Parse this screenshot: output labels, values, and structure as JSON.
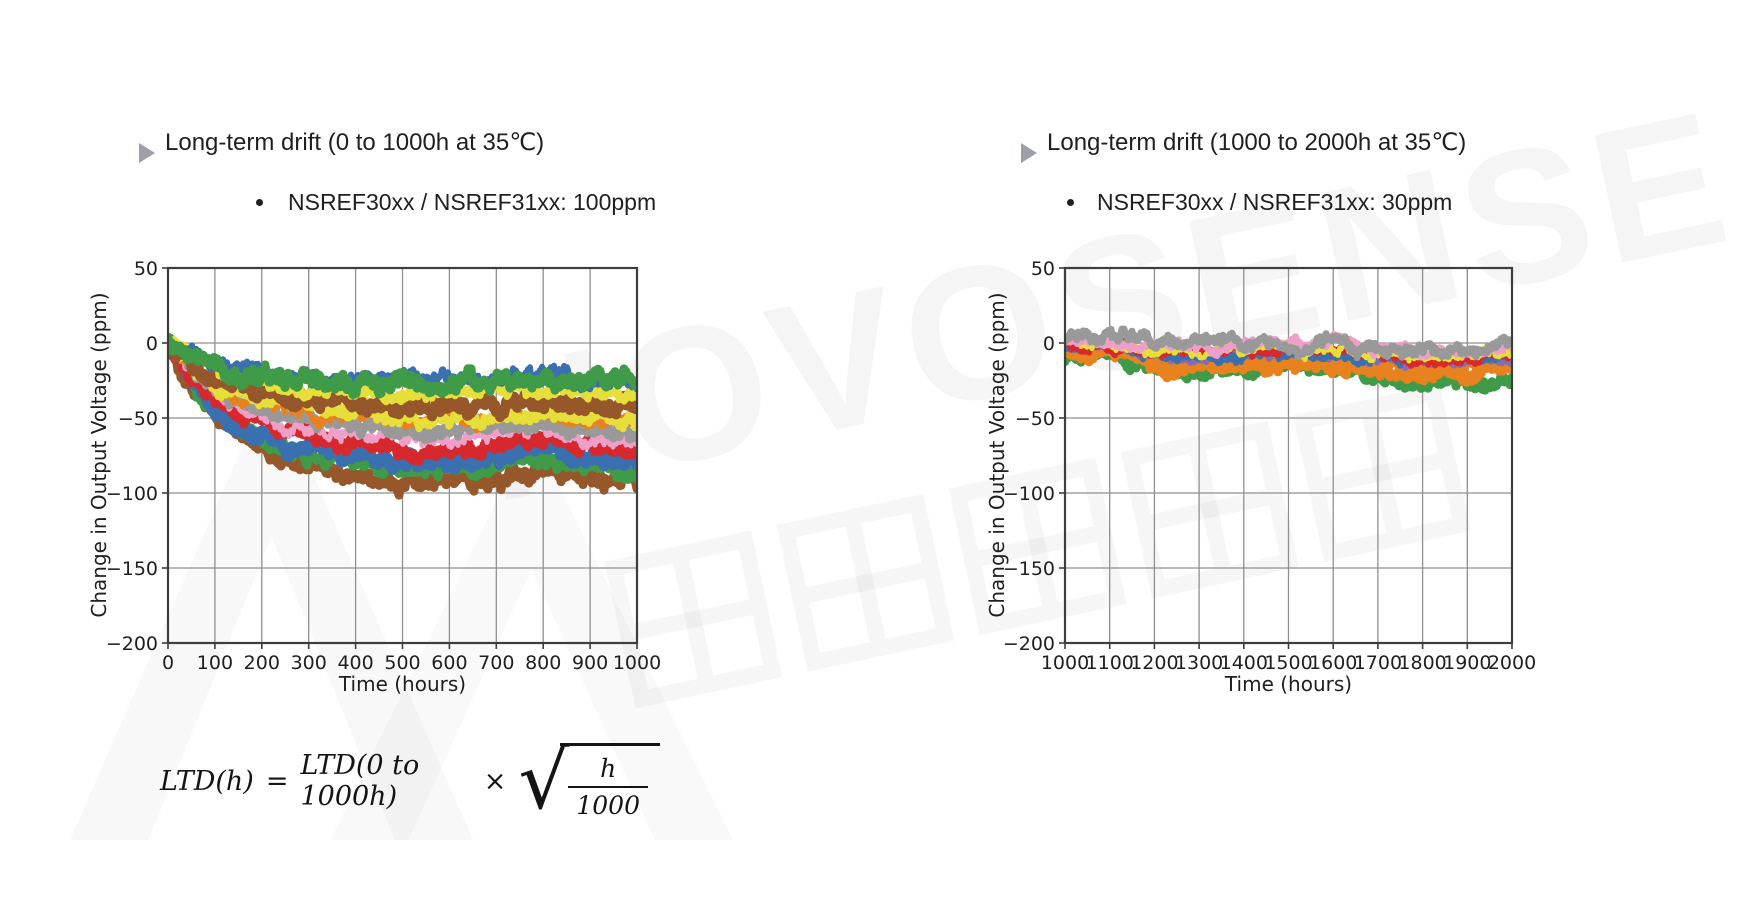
{
  "page": {
    "background": "#ffffff"
  },
  "watermark": {
    "brand_text": "NOVOSENSE",
    "cjk_text": "纳芯微电子",
    "cjk_chars": [
      "纳",
      "芯",
      "微",
      "电",
      "子"
    ]
  },
  "left_panel": {
    "title": "Long-term drift (0 to 1000h at 35℃)",
    "bullet": "NSREF30xx / NSREF31xx: 100ppm",
    "formula": {
      "lhs": "LTD(h)",
      "equals": "=",
      "rhs": "LTD(0 to 1000h)",
      "times": "×",
      "sqrt_numerator": "h",
      "sqrt_denominator": "1000"
    }
  },
  "right_panel": {
    "title": "Long-term drift (1000 to 2000h at 35℃)",
    "bullet": "NSREF30xx / NSREF31xx: 30ppm"
  },
  "chart_data": [
    {
      "type": "line",
      "title": "Long-term drift (0 to 1000h at 35℃)",
      "xlabel": "Time (hours)",
      "ylabel": "Change in Output Voltage (ppm)",
      "xlim": [
        0,
        1000
      ],
      "ylim": [
        -200,
        50
      ],
      "xticks": [
        0,
        100,
        200,
        300,
        400,
        500,
        600,
        700,
        800,
        900,
        1000
      ],
      "yticks": [
        50,
        0,
        -50,
        -100,
        -150,
        -200
      ],
      "grid": true,
      "legend": "none",
      "x_step": 50,
      "description": "Many device units, noisy traces settling between -25 and -95 ppm after ~400h",
      "series": [
        {
          "name": "unit-brown-low",
          "color": "#96582a",
          "width": 9,
          "noise": 5,
          "seed": 11,
          "values_ppm": [
            0,
            -28,
            -48,
            -62,
            -72,
            -78,
            -83,
            -86,
            -89,
            -92,
            -93,
            -94,
            -93,
            -92,
            -91,
            -86,
            -84,
            -87,
            -92,
            -93,
            -95
          ]
        },
        {
          "name": "unit-green-low",
          "color": "#3f9b47",
          "width": 9,
          "noise": 5,
          "seed": 22,
          "values_ppm": [
            0,
            -25,
            -44,
            -56,
            -65,
            -71,
            -75,
            -78,
            -81,
            -83,
            -84,
            -85,
            -84,
            -83,
            -82,
            -78,
            -76,
            -79,
            -83,
            -84,
            -86
          ]
        },
        {
          "name": "unit-blue-low",
          "color": "#3a6fb0",
          "width": 10,
          "noise": 5,
          "seed": 33,
          "values_ppm": [
            0,
            -24,
            -41,
            -53,
            -61,
            -66,
            -70,
            -73,
            -76,
            -78,
            -79,
            -80,
            -79,
            -78,
            -77,
            -73,
            -71,
            -74,
            -78,
            -79,
            -81
          ]
        },
        {
          "name": "unit-red",
          "color": "#d7282e",
          "width": 9,
          "noise": 4,
          "seed": 44,
          "values_ppm": [
            0,
            -21,
            -36,
            -47,
            -54,
            -59,
            -62,
            -65,
            -67,
            -69,
            -70,
            -71,
            -70,
            -69,
            -69,
            -65,
            -63,
            -66,
            -69,
            -70,
            -71
          ]
        },
        {
          "name": "unit-pink",
          "color": "#ee9fc7",
          "width": 5,
          "noise": 4,
          "seed": 55,
          "values_ppm": [
            0,
            -19,
            -33,
            -43,
            -49,
            -54,
            -57,
            -60,
            -61,
            -63,
            -64,
            -65,
            -64,
            -63,
            -63,
            -60,
            -58,
            -60,
            -63,
            -64,
            -65
          ]
        },
        {
          "name": "unit-gray",
          "color": "#999999",
          "width": 8,
          "noise": 4,
          "seed": 66,
          "values_ppm": [
            0,
            -18,
            -31,
            -40,
            -45,
            -50,
            -53,
            -55,
            -57,
            -58,
            -59,
            -60,
            -59,
            -58,
            -58,
            -55,
            -53,
            -55,
            -58,
            -59,
            -60
          ]
        },
        {
          "name": "unit-orange",
          "color": "#e8821e",
          "width": 5,
          "noise": 4,
          "seed": 77,
          "values_ppm": [
            0,
            -16,
            -28,
            -36,
            -41,
            -45,
            -47,
            -49,
            -51,
            -52,
            -53,
            -54,
            -53,
            -52,
            -52,
            -49,
            -48,
            -50,
            -52,
            -53,
            -54
          ]
        },
        {
          "name": "unit-yellow-low",
          "color": "#e6de39",
          "width": 7,
          "noise": 4,
          "seed": 88,
          "values_ppm": [
            0,
            -15,
            -26,
            -34,
            -39,
            -42,
            -45,
            -47,
            -48,
            -50,
            -50,
            -51,
            -50,
            -50,
            -49,
            -47,
            -45,
            -47,
            -50,
            -50,
            -51
          ]
        },
        {
          "name": "unit-brown",
          "color": "#96582a",
          "width": 10,
          "noise": 5,
          "seed": 99,
          "values_ppm": [
            0,
            -13,
            -22,
            -29,
            -33,
            -36,
            -38,
            -40,
            -41,
            -43,
            -43,
            -43,
            -43,
            -43,
            -42,
            -40,
            -39,
            -40,
            -43,
            -43,
            -44
          ]
        },
        {
          "name": "unit-yellow",
          "color": "#e6de39",
          "width": 7,
          "noise": 4,
          "seed": 111,
          "values_ppm": [
            0,
            -10,
            -18,
            -23,
            -26,
            -29,
            -30,
            -32,
            -33,
            -34,
            -34,
            -34,
            -34,
            -34,
            -33,
            -32,
            -31,
            -32,
            -34,
            -34,
            -35
          ]
        },
        {
          "name": "unit-blue",
          "color": "#3a6fb0",
          "width": 6,
          "noise": 4,
          "seed": 122,
          "values_ppm": [
            0,
            -7,
            -12,
            -15,
            -18,
            -19,
            -20,
            -21,
            -22,
            -23,
            -23,
            -23,
            -23,
            -23,
            -23,
            -21,
            -21,
            -22,
            -23,
            -23,
            -24
          ]
        },
        {
          "name": "unit-green",
          "color": "#3f9b47",
          "width": 9,
          "noise": 5,
          "seed": 133,
          "values_ppm": [
            0,
            -8,
            -14,
            -18,
            -21,
            -23,
            -24,
            -25,
            -26,
            -27,
            -27,
            -27,
            -27,
            -27,
            -26,
            -25,
            -24,
            -25,
            -27,
            -27,
            -28
          ]
        }
      ]
    },
    {
      "type": "line",
      "title": "Long-term drift (1000 to 2000h at 35℃)",
      "xlabel": "Time (hours)",
      "ylabel": "Change in Output Voltage (ppm)",
      "xlim": [
        1000,
        2000
      ],
      "ylim": [
        -200,
        50
      ],
      "xticks": [
        1000,
        1100,
        1200,
        1300,
        1400,
        1500,
        1600,
        1700,
        1800,
        1900,
        2000
      ],
      "yticks": [
        50,
        0,
        -50,
        -100,
        -150,
        -200
      ],
      "grid": true,
      "legend": "none",
      "x_step": 100,
      "description": "Traces stay within about +5 to -30 ppm over 1000h",
      "series": [
        {
          "name": "unit-green",
          "color": "#3f9b47",
          "width": 9,
          "noise": 4,
          "seed": 7,
          "values_ppm": [
            -8,
            -9,
            -17,
            -19,
            -18,
            -18,
            -19,
            -22,
            -27,
            -26,
            -22
          ]
        },
        {
          "name": "unit-orange-low",
          "color": "#e8821e",
          "width": 9,
          "noise": 4,
          "seed": 17,
          "values_ppm": [
            -5,
            -6,
            -14,
            -16,
            -15,
            -14,
            -16,
            -18,
            -23,
            -21,
            -18
          ]
        },
        {
          "name": "unit-orange",
          "color": "#e8821e",
          "width": 8,
          "noise": 4,
          "seed": 27,
          "values_ppm": [
            -3,
            -4,
            -11,
            -12,
            -11,
            -11,
            -12,
            -14,
            -18,
            -16,
            -13
          ]
        },
        {
          "name": "unit-purple",
          "color": "#8b6bb0",
          "width": 6,
          "noise": 3,
          "seed": 37,
          "values_ppm": [
            -2,
            -3,
            -8,
            -9,
            -9,
            -8,
            -9,
            -11,
            -14,
            -13,
            -10
          ]
        },
        {
          "name": "unit-blue",
          "color": "#3a6fb0",
          "width": 6,
          "noise": 3,
          "seed": 47,
          "values_ppm": [
            -1,
            -2,
            -7,
            -8,
            -7,
            -7,
            -8,
            -10,
            -12,
            -11,
            -9
          ]
        },
        {
          "name": "unit-red",
          "color": "#d7282e",
          "width": 6,
          "noise": 3,
          "seed": 57,
          "values_ppm": [
            0,
            -1,
            -6,
            -7,
            -6,
            -5,
            -6,
            -9,
            -11,
            -10,
            -7
          ]
        },
        {
          "name": "unit-yellow",
          "color": "#e6de39",
          "width": 5,
          "noise": 3,
          "seed": 67,
          "values_ppm": [
            1,
            0,
            -4,
            -5,
            -5,
            -4,
            -5,
            -7,
            -9,
            -8,
            -6
          ]
        },
        {
          "name": "unit-pink",
          "color": "#ee9fc7",
          "width": 6,
          "noise": 3,
          "seed": 77,
          "values_ppm": [
            2,
            1,
            -2,
            -3,
            -2,
            -1,
            -1,
            -4,
            -6,
            -5,
            -3
          ]
        },
        {
          "name": "unit-gray",
          "color": "#999999",
          "width": 7,
          "noise": 4,
          "seed": 87,
          "values_ppm": [
            3,
            4,
            0,
            -1,
            0,
            1,
            0,
            -2,
            -4,
            -3,
            -2
          ]
        }
      ]
    }
  ]
}
